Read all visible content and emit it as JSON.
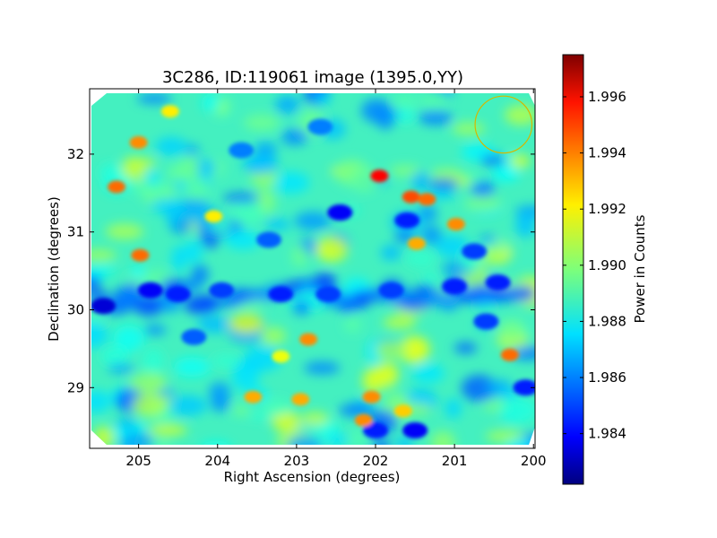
{
  "chart_data": {
    "type": "heatmap",
    "title": "3C286, ID:119061 image (1395.0,YY)",
    "xlabel": "Right Ascension (degrees)",
    "ylabel": "Declination (degrees)",
    "xlim": [
      205.62,
      199.98
    ],
    "ylim": [
      28.22,
      32.84
    ],
    "x_ticks": [
      205,
      204,
      203,
      202,
      201,
      200
    ],
    "x_tick_labels": [
      "205",
      "204",
      "203",
      "202",
      "201",
      "200"
    ],
    "y_ticks": [
      29,
      30,
      31,
      32
    ],
    "y_tick_labels": [
      "29",
      "30",
      "31",
      "32"
    ],
    "colorbar": {
      "label": "Power in Counts",
      "range": [
        1.9822,
        1.9975
      ],
      "ticks": [
        1.984,
        1.986,
        1.988,
        1.99,
        1.992,
        1.994,
        1.996
      ],
      "tick_labels": [
        "1.984",
        "1.986",
        "1.988",
        "1.990",
        "1.992",
        "1.994",
        "1.996"
      ],
      "colormap": "jet"
    },
    "baseline_value": 1.9885,
    "hotspots": [
      {
        "ra": 201.95,
        "dec": 31.72,
        "value": 1.9955
      },
      {
        "ra": 201.55,
        "dec": 31.45,
        "value": 1.9945
      },
      {
        "ra": 201.35,
        "dec": 31.42,
        "value": 1.994
      },
      {
        "ra": 205.0,
        "dec": 32.15,
        "value": 1.9935
      },
      {
        "ra": 205.28,
        "dec": 31.58,
        "value": 1.994
      },
      {
        "ra": 204.98,
        "dec": 30.7,
        "value": 1.994
      },
      {
        "ra": 201.48,
        "dec": 30.85,
        "value": 1.993
      },
      {
        "ra": 200.98,
        "dec": 31.1,
        "value": 1.9935
      },
      {
        "ra": 203.55,
        "dec": 28.88,
        "value": 1.993
      },
      {
        "ra": 202.95,
        "dec": 28.85,
        "value": 1.993
      },
      {
        "ra": 202.05,
        "dec": 28.88,
        "value": 1.9935
      },
      {
        "ra": 200.3,
        "dec": 29.42,
        "value": 1.994
      },
      {
        "ra": 202.15,
        "dec": 28.58,
        "value": 1.9935
      },
      {
        "ra": 204.6,
        "dec": 32.55,
        "value": 1.992
      },
      {
        "ra": 202.85,
        "dec": 29.62,
        "value": 1.9935
      },
      {
        "ra": 201.65,
        "dec": 28.7,
        "value": 1.9925
      },
      {
        "ra": 204.05,
        "dec": 31.2,
        "value": 1.992
      },
      {
        "ra": 203.2,
        "dec": 29.4,
        "value": 1.9915
      }
    ],
    "coldspots": [
      {
        "ra": 205.45,
        "dec": 30.05,
        "value": 1.9835
      },
      {
        "ra": 204.85,
        "dec": 30.25,
        "value": 1.984
      },
      {
        "ra": 204.5,
        "dec": 30.2,
        "value": 1.9845
      },
      {
        "ra": 203.95,
        "dec": 30.25,
        "value": 1.985
      },
      {
        "ra": 203.2,
        "dec": 30.2,
        "value": 1.9845
      },
      {
        "ra": 202.6,
        "dec": 30.2,
        "value": 1.985
      },
      {
        "ra": 201.8,
        "dec": 30.25,
        "value": 1.985
      },
      {
        "ra": 201.0,
        "dec": 30.3,
        "value": 1.9845
      },
      {
        "ra": 200.45,
        "dec": 30.35,
        "value": 1.9845
      },
      {
        "ra": 202.45,
        "dec": 31.25,
        "value": 1.984
      },
      {
        "ra": 201.6,
        "dec": 31.15,
        "value": 1.9845
      },
      {
        "ra": 200.75,
        "dec": 30.75,
        "value": 1.985
      },
      {
        "ra": 202.0,
        "dec": 28.45,
        "value": 1.9845
      },
      {
        "ra": 201.5,
        "dec": 28.45,
        "value": 1.984
      },
      {
        "ra": 200.1,
        "dec": 29.0,
        "value": 1.9845
      },
      {
        "ra": 203.35,
        "dec": 30.9,
        "value": 1.9855
      },
      {
        "ra": 200.6,
        "dec": 29.85,
        "value": 1.985
      },
      {
        "ra": 204.3,
        "dec": 29.65,
        "value": 1.9855
      },
      {
        "ra": 203.7,
        "dec": 32.05,
        "value": 1.986
      },
      {
        "ra": 202.7,
        "dec": 32.35,
        "value": 1.986
      }
    ],
    "annotation_circle": {
      "ra": 200.38,
      "dec": 32.38,
      "radius_deg": 0.36
    }
  }
}
